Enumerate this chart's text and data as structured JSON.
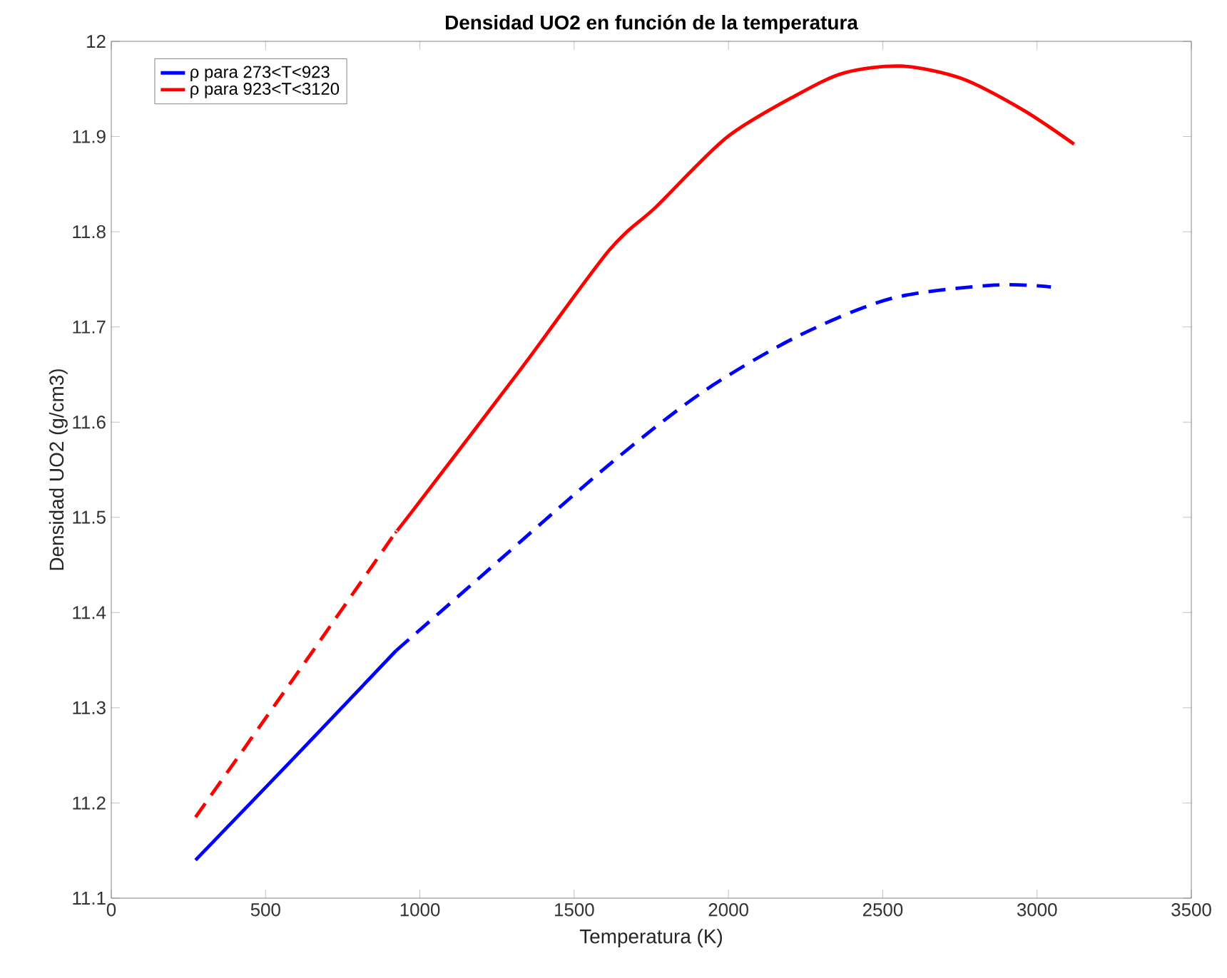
{
  "chart_data": {
    "type": "line",
    "title": "Densidad UO2 en función de la temperatura",
    "xlabel": "Temperatura (K)",
    "ylabel": "Densidad UO2 (g/cm3)",
    "xlim": [
      0,
      3500
    ],
    "ylim": [
      11.1,
      12
    ],
    "xticks": [
      0,
      500,
      1000,
      1500,
      2000,
      2500,
      3000,
      3500
    ],
    "yticks": [
      11.1,
      11.2,
      11.3,
      11.4,
      11.5,
      11.6,
      11.7,
      11.8,
      11.9,
      12
    ],
    "legend": "top left",
    "grid": false,
    "series": [
      {
        "name": "ρ para 273<T<923",
        "color": "#0000ff",
        "line_style": "solid",
        "x": [
          273,
          600,
          923
        ],
        "values": [
          11.14,
          11.25,
          11.36
        ]
      },
      {
        "name": "ρ para 923<T<3120",
        "color": "#ff0000",
        "line_style": "solid",
        "x": [
          923,
          972,
          1323,
          1612,
          1765,
          1994,
          2223,
          2376,
          2560,
          2755,
          2954,
          3120
        ],
        "values": [
          11.485,
          11.505,
          11.654,
          11.78,
          11.826,
          11.899,
          11.944,
          11.967,
          11.974,
          11.961,
          11.928,
          11.892
        ]
      },
      {
        "color": "#0000ff",
        "line_style": "dashed",
        "x": [
          923,
          1170,
          1612,
          1918,
          2223,
          2528,
          2862,
          3045
        ],
        "values": [
          11.36,
          11.43,
          11.555,
          11.632,
          11.69,
          11.73,
          11.744,
          11.742
        ]
      },
      {
        "color": "#ff0000",
        "line_style": "dashed",
        "x": [
          273,
          600,
          923
        ],
        "values": [
          11.185,
          11.335,
          11.485
        ]
      }
    ]
  }
}
